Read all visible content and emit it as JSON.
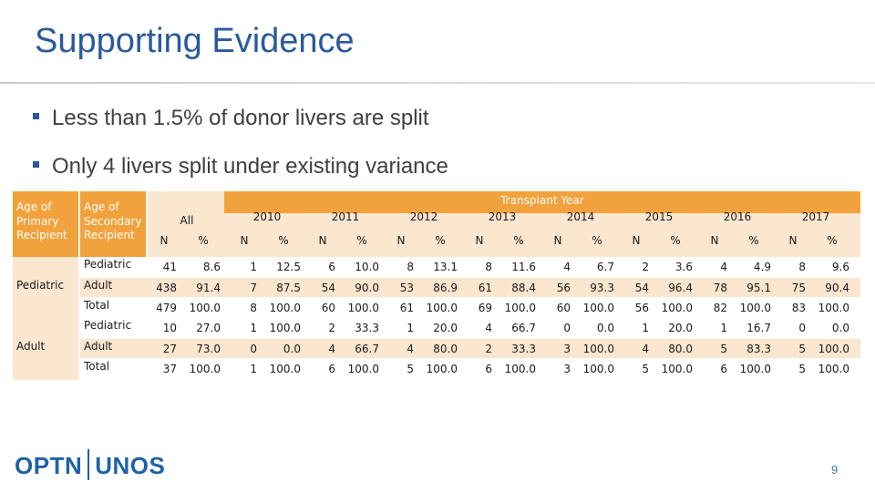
{
  "slide": {
    "title": "Supporting Evidence",
    "bullets": [
      "Less than 1.5% of donor livers are split",
      "Only 4 livers split under existing variance"
    ],
    "page_number": "9",
    "logo": {
      "left": "OPTN",
      "right": "UNOS"
    }
  },
  "table": {
    "col_primary": "Age of Primary Recipient",
    "col_secondary": "Age of Secondary Recipient",
    "transplant_year": "Transplant Year",
    "groups": [
      "All",
      "2010",
      "2011",
      "2012",
      "2013",
      "2014",
      "2015",
      "2016",
      "2017"
    ],
    "sub_n": "N",
    "sub_pct": "%",
    "sections": [
      {
        "primary": "Pediatric",
        "rows": [
          {
            "secondary": "Pediatric",
            "values": [
              [
                "41",
                "8.6"
              ],
              [
                "1",
                "12.5"
              ],
              [
                "6",
                "10.0"
              ],
              [
                "8",
                "13.1"
              ],
              [
                "8",
                "11.6"
              ],
              [
                "4",
                "6.7"
              ],
              [
                "2",
                "3.6"
              ],
              [
                "4",
                "4.9"
              ],
              [
                "8",
                "9.6"
              ]
            ]
          },
          {
            "secondary": "Adult",
            "values": [
              [
                "438",
                "91.4"
              ],
              [
                "7",
                "87.5"
              ],
              [
                "54",
                "90.0"
              ],
              [
                "53",
                "86.9"
              ],
              [
                "61",
                "88.4"
              ],
              [
                "56",
                "93.3"
              ],
              [
                "54",
                "96.4"
              ],
              [
                "78",
                "95.1"
              ],
              [
                "75",
                "90.4"
              ]
            ]
          },
          {
            "secondary": "Total",
            "values": [
              [
                "479",
                "100.0"
              ],
              [
                "8",
                "100.0"
              ],
              [
                "60",
                "100.0"
              ],
              [
                "61",
                "100.0"
              ],
              [
                "69",
                "100.0"
              ],
              [
                "60",
                "100.0"
              ],
              [
                "56",
                "100.0"
              ],
              [
                "82",
                "100.0"
              ],
              [
                "83",
                "100.0"
              ]
            ]
          }
        ]
      },
      {
        "primary": "Adult",
        "rows": [
          {
            "secondary": "Pediatric",
            "values": [
              [
                "10",
                "27.0"
              ],
              [
                "1",
                "100.0"
              ],
              [
                "2",
                "33.3"
              ],
              [
                "1",
                "20.0"
              ],
              [
                "4",
                "66.7"
              ],
              [
                "0",
                "0.0"
              ],
              [
                "1",
                "20.0"
              ],
              [
                "1",
                "16.7"
              ],
              [
                "0",
                "0.0"
              ]
            ]
          },
          {
            "secondary": "Adult",
            "values": [
              [
                "27",
                "73.0"
              ],
              [
                "0",
                "0.0"
              ],
              [
                "4",
                "66.7"
              ],
              [
                "4",
                "80.0"
              ],
              [
                "2",
                "33.3"
              ],
              [
                "3",
                "100.0"
              ],
              [
                "4",
                "80.0"
              ],
              [
                "5",
                "83.3"
              ],
              [
                "5",
                "100.0"
              ]
            ]
          },
          {
            "secondary": "Total",
            "values": [
              [
                "37",
                "100.0"
              ],
              [
                "1",
                "100.0"
              ],
              [
                "6",
                "100.0"
              ],
              [
                "5",
                "100.0"
              ],
              [
                "6",
                "100.0"
              ],
              [
                "3",
                "100.0"
              ],
              [
                "5",
                "100.0"
              ],
              [
                "6",
                "100.0"
              ],
              [
                "5",
                "100.0"
              ]
            ]
          }
        ]
      }
    ]
  }
}
